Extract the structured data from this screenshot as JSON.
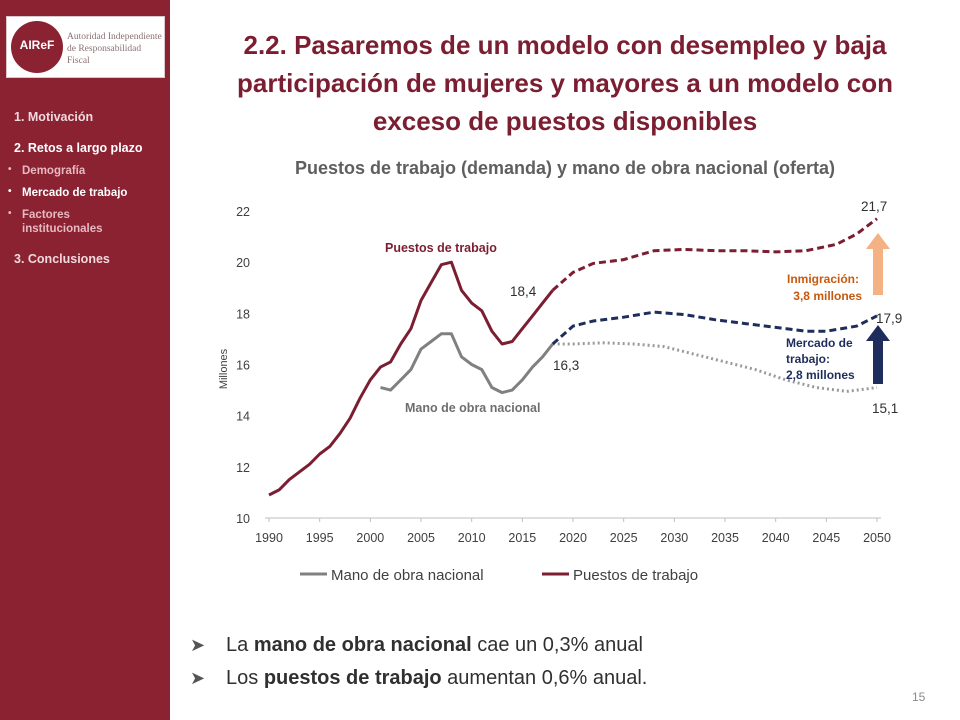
{
  "logo": {
    "mark": "AIReF",
    "text_line1": "Autoridad Independiente",
    "text_line2": "de Responsabilidad Fiscal"
  },
  "nav": [
    {
      "label": "1. Motivación",
      "active": false
    },
    {
      "label": "2. Retos a largo plazo",
      "active": true
    },
    {
      "label": "3. Conclusiones",
      "active": false
    }
  ],
  "subnav": [
    {
      "label": "Demografía",
      "active": false
    },
    {
      "label": "Mercado de trabajo",
      "active": true
    },
    {
      "label": "Factores institucionales",
      "active": false
    }
  ],
  "title": "2.2. Pasaremos de un modelo con desempleo y baja participación de mujeres y mayores a un modelo con exceso de puestos disponibles",
  "bullets": [
    {
      "pre": "La ",
      "bold": "mano de obra nacional",
      "post": " cae un 0,3% anual"
    },
    {
      "pre": "Los ",
      "bold": "puestos de trabajo",
      "post": " aumentan 0,6% anual."
    }
  ],
  "page_number": "15",
  "colors": {
    "brand": "#8B2232",
    "puestos": "#7B1E32",
    "mano": "#808080",
    "mercado": "#1F2D5C",
    "inmigracion": "#F4B183",
    "inmigracion_text": "#C55A11"
  },
  "chart_data": {
    "type": "line",
    "title": "Puestos de trabajo (demanda) y mano de obra nacional (oferta)",
    "ylabel": "Millones",
    "xlabel": "",
    "xlim": [
      1990,
      2050
    ],
    "ylim": [
      10,
      22
    ],
    "x_ticks": [
      1990,
      1995,
      2000,
      2005,
      2010,
      2015,
      2020,
      2025,
      2030,
      2035,
      2040,
      2045,
      2050
    ],
    "y_ticks": [
      10,
      12,
      14,
      16,
      18,
      20,
      22
    ],
    "grid": false,
    "legend_position": "bottom",
    "series": [
      {
        "name": "Mano de obra nacional",
        "color": "#808080",
        "historical": [
          [
            2001,
            15.1
          ],
          [
            2002,
            15.0
          ],
          [
            2003,
            15.4
          ],
          [
            2004,
            15.8
          ],
          [
            2005,
            16.6
          ],
          [
            2006,
            16.9
          ],
          [
            2007,
            17.2
          ],
          [
            2008,
            17.2
          ],
          [
            2009,
            16.3
          ],
          [
            2010,
            16.0
          ],
          [
            2011,
            15.8
          ],
          [
            2012,
            15.1
          ],
          [
            2013,
            14.9
          ],
          [
            2014,
            15.0
          ],
          [
            2015,
            15.4
          ],
          [
            2016,
            15.9
          ],
          [
            2017,
            16.3
          ],
          [
            2018,
            16.8
          ]
        ],
        "projection": [
          [
            2018,
            16.8
          ],
          [
            2020,
            16.8
          ],
          [
            2023,
            16.85
          ],
          [
            2026,
            16.8
          ],
          [
            2029,
            16.7
          ],
          [
            2032,
            16.4
          ],
          [
            2035,
            16.1
          ],
          [
            2038,
            15.8
          ],
          [
            2041,
            15.4
          ],
          [
            2044,
            15.1
          ],
          [
            2047,
            14.95
          ],
          [
            2050,
            15.1
          ]
        ]
      },
      {
        "name": "Puestos de trabajo",
        "color": "#7B1E32",
        "historical": [
          [
            1990,
            10.9
          ],
          [
            1991,
            11.1
          ],
          [
            1992,
            11.5
          ],
          [
            1993,
            11.8
          ],
          [
            1994,
            12.1
          ],
          [
            1995,
            12.5
          ],
          [
            1996,
            12.8
          ],
          [
            1997,
            13.3
          ],
          [
            1998,
            13.9
          ],
          [
            1999,
            14.7
          ],
          [
            2000,
            15.4
          ],
          [
            2001,
            15.9
          ],
          [
            2002,
            16.1
          ],
          [
            2003,
            16.8
          ],
          [
            2004,
            17.4
          ],
          [
            2005,
            18.5
          ],
          [
            2006,
            19.2
          ],
          [
            2007,
            19.9
          ],
          [
            2008,
            20.0
          ],
          [
            2009,
            18.9
          ],
          [
            2010,
            18.4
          ],
          [
            2011,
            18.1
          ],
          [
            2012,
            17.3
          ],
          [
            2013,
            16.8
          ],
          [
            2014,
            16.9
          ],
          [
            2015,
            17.4
          ],
          [
            2016,
            17.9
          ],
          [
            2017,
            18.4
          ],
          [
            2018,
            18.9
          ]
        ],
        "projection": [
          [
            2018,
            18.9
          ],
          [
            2020,
            19.6
          ],
          [
            2022,
            19.95
          ],
          [
            2025,
            20.1
          ],
          [
            2028,
            20.45
          ],
          [
            2031,
            20.5
          ],
          [
            2034,
            20.45
          ],
          [
            2037,
            20.45
          ],
          [
            2040,
            20.4
          ],
          [
            2043,
            20.45
          ],
          [
            2046,
            20.7
          ],
          [
            2048,
            21.1
          ],
          [
            2050,
            21.7
          ]
        ]
      },
      {
        "name": "",
        "color": "#1F2D5C",
        "projection": [
          [
            2018,
            16.8
          ],
          [
            2020,
            17.5
          ],
          [
            2022,
            17.7
          ],
          [
            2025,
            17.85
          ],
          [
            2028,
            18.05
          ],
          [
            2031,
            17.95
          ],
          [
            2034,
            17.75
          ],
          [
            2037,
            17.6
          ],
          [
            2040,
            17.45
          ],
          [
            2043,
            17.3
          ],
          [
            2045,
            17.3
          ],
          [
            2048,
            17.5
          ],
          [
            2050,
            17.9
          ]
        ]
      }
    ],
    "annotations": {
      "puestos_label": "Puestos de trabajo",
      "mano_label": "Mano de obra nacional",
      "val_184": "18,4",
      "val_163": "16,3",
      "val_217": "21,7",
      "val_179": "17,9",
      "val_151": "15,1",
      "inmigracion_line1": "Inmigración:",
      "inmigracion_line2": "3,8 millones",
      "mercado_line1": "Mercado de",
      "mercado_line2": "trabajo:",
      "mercado_line3": "2,8 millones"
    }
  }
}
